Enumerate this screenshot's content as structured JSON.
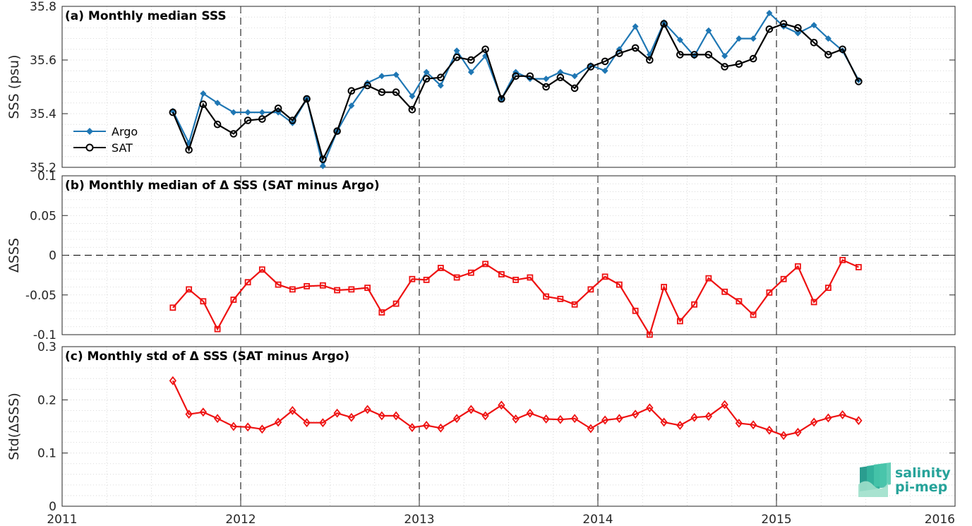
{
  "colors": {
    "argo": "#1f77b4",
    "sat": "#000000",
    "delta": "#ee1111",
    "grid": "#d0d0d0",
    "logo": "#27a39a"
  },
  "x_ticks": [
    "2011",
    "2012",
    "2013",
    "2014",
    "2015",
    "2016"
  ],
  "logo": {
    "line1": "salinity",
    "line2": "pi-mep",
    "icon": "wave-layers-icon"
  },
  "chart_data": [
    {
      "type": "line",
      "title": "(a) Monthly median SSS",
      "ylabel": "SSS (psu)",
      "xlim": [
        2011,
        2016
      ],
      "ylim": [
        35.2,
        35.8
      ],
      "yticks": [
        "35.2",
        "35.4",
        "35.6",
        "35.8"
      ],
      "grid": true,
      "legend_position": "lower-left",
      "x": [
        2011.62,
        2011.71,
        2011.79,
        2011.87,
        2011.96,
        2012.04,
        2012.12,
        2012.21,
        2012.29,
        2012.37,
        2012.46,
        2012.54,
        2012.62,
        2012.71,
        2012.79,
        2012.87,
        2012.96,
        2013.04,
        2013.12,
        2013.21,
        2013.29,
        2013.37,
        2013.46,
        2013.54,
        2013.62,
        2013.71,
        2013.79,
        2013.87,
        2013.96,
        2014.04,
        2014.12,
        2014.21,
        2014.29,
        2014.37,
        2014.46,
        2014.54,
        2014.62,
        2014.71,
        2014.79,
        2014.87,
        2014.96,
        2015.04,
        2015.12,
        2015.21,
        2015.29,
        2015.37,
        2015.46
      ],
      "series": [
        {
          "name": "Argo",
          "values": [
            35.41,
            35.29,
            35.475,
            35.44,
            35.405,
            35.405,
            35.405,
            35.405,
            35.365,
            35.455,
            35.205,
            35.335,
            35.43,
            35.515,
            35.54,
            35.545,
            35.465,
            35.555,
            35.505,
            35.635,
            35.555,
            35.615,
            35.455,
            35.555,
            35.53,
            35.53,
            35.555,
            35.54,
            35.58,
            35.56,
            35.64,
            35.725,
            35.62,
            35.74,
            35.675,
            35.615,
            35.71,
            35.615,
            35.68,
            35.68,
            35.775,
            35.725,
            35.7,
            35.73,
            35.68,
            35.635,
            35.525
          ]
        },
        {
          "name": "SAT",
          "values": [
            35.405,
            35.265,
            35.435,
            35.36,
            35.325,
            35.375,
            35.38,
            35.42,
            35.375,
            35.455,
            35.23,
            35.335,
            35.485,
            35.505,
            35.48,
            35.48,
            35.415,
            35.53,
            35.535,
            35.61,
            35.6,
            35.64,
            35.455,
            35.54,
            35.54,
            35.5,
            35.535,
            35.495,
            35.575,
            35.595,
            35.625,
            35.645,
            35.6,
            35.735,
            35.62,
            35.62,
            35.62,
            35.575,
            35.585,
            35.605,
            35.715,
            35.735,
            35.72,
            35.665,
            35.62,
            35.64,
            35.52
          ]
        }
      ]
    },
    {
      "type": "line",
      "title": "(b) Monthly median of Δ SSS (SAT minus Argo)",
      "ylabel": "ΔSSS",
      "xlim": [
        2011,
        2016
      ],
      "ylim": [
        -0.1,
        0.1
      ],
      "yticks": [
        "-0.1",
        "-0.05",
        "0",
        "0.05",
        "0.1"
      ],
      "grid": true,
      "x": [
        2011.62,
        2011.71,
        2011.79,
        2011.87,
        2011.96,
        2012.04,
        2012.12,
        2012.21,
        2012.29,
        2012.37,
        2012.46,
        2012.54,
        2012.62,
        2012.71,
        2012.79,
        2012.87,
        2012.96,
        2013.04,
        2013.12,
        2013.21,
        2013.29,
        2013.37,
        2013.46,
        2013.54,
        2013.62,
        2013.71,
        2013.79,
        2013.87,
        2013.96,
        2014.04,
        2014.12,
        2014.21,
        2014.29,
        2014.37,
        2014.46,
        2014.54,
        2014.62,
        2014.71,
        2014.79,
        2014.87,
        2014.96,
        2015.04,
        2015.12,
        2015.21,
        2015.29,
        2015.37,
        2015.46
      ],
      "series": [
        {
          "values": [
            -0.066,
            -0.043,
            -0.058,
            -0.093,
            -0.056,
            -0.034,
            -0.018,
            -0.037,
            -0.043,
            -0.039,
            -0.038,
            -0.044,
            -0.043,
            -0.041,
            -0.072,
            -0.061,
            -0.03,
            -0.031,
            -0.016,
            -0.028,
            -0.022,
            -0.011,
            -0.024,
            -0.031,
            -0.028,
            -0.052,
            -0.055,
            -0.062,
            -0.043,
            -0.027,
            -0.037,
            -0.07,
            -0.1,
            -0.04,
            -0.083,
            -0.062,
            -0.029,
            -0.046,
            -0.058,
            -0.075,
            -0.047,
            -0.03,
            -0.014,
            -0.059,
            -0.041,
            -0.006,
            -0.015
          ]
        }
      ]
    },
    {
      "type": "line",
      "title": "(c) Monthly std of Δ SSS (SAT minus Argo)",
      "ylabel": "Std(ΔSSS)",
      "xlim": [
        2011,
        2016
      ],
      "ylim": [
        0,
        0.3
      ],
      "yticks": [
        "0",
        "0.1",
        "0.2",
        "0.3"
      ],
      "grid": true,
      "x": [
        2011.62,
        2011.71,
        2011.79,
        2011.87,
        2011.96,
        2012.04,
        2012.12,
        2012.21,
        2012.29,
        2012.37,
        2012.46,
        2012.54,
        2012.62,
        2012.71,
        2012.79,
        2012.87,
        2012.96,
        2013.04,
        2013.12,
        2013.21,
        2013.29,
        2013.37,
        2013.46,
        2013.54,
        2013.62,
        2013.71,
        2013.79,
        2013.87,
        2013.96,
        2014.04,
        2014.12,
        2014.21,
        2014.29,
        2014.37,
        2014.46,
        2014.54,
        2014.62,
        2014.71,
        2014.79,
        2014.87,
        2014.96,
        2015.04,
        2015.12,
        2015.21,
        2015.29,
        2015.37,
        2015.46
      ],
      "series": [
        {
          "values": [
            0.236,
            0.173,
            0.177,
            0.165,
            0.15,
            0.149,
            0.145,
            0.158,
            0.18,
            0.157,
            0.157,
            0.175,
            0.167,
            0.182,
            0.17,
            0.17,
            0.148,
            0.152,
            0.147,
            0.165,
            0.182,
            0.17,
            0.19,
            0.164,
            0.175,
            0.164,
            0.163,
            0.165,
            0.146,
            0.162,
            0.165,
            0.173,
            0.185,
            0.158,
            0.152,
            0.167,
            0.169,
            0.191,
            0.156,
            0.153,
            0.143,
            0.133,
            0.139,
            0.158,
            0.166,
            0.172,
            0.161
          ]
        }
      ]
    }
  ]
}
